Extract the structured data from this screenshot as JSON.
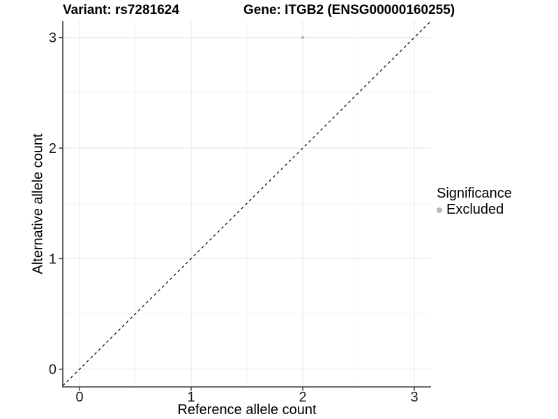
{
  "figure": {
    "title_left": "Variant: rs7281624",
    "title_right": "Gene: ITGB2 (ENSG00000160255)"
  },
  "chart_data": {
    "type": "scatter",
    "title": "Variant: rs7281624 — Gene: ITGB2 (ENSG00000160255)",
    "xlabel": "Reference allele count",
    "ylabel": "Alternative allele count",
    "xlim": [
      -0.15,
      3.15
    ],
    "ylim": [
      -0.16,
      3.15
    ],
    "xticks": [
      0,
      1,
      2,
      3
    ],
    "yticks": [
      0,
      1,
      2,
      3
    ],
    "xticks_minor": [
      0.5,
      1.5,
      2.5
    ],
    "yticks_minor": [
      0.5,
      1.5,
      2.5
    ],
    "grid": "major and minor, light gray on white panel",
    "points": [
      {
        "x": 2,
        "y": 3,
        "series": "Excluded"
      }
    ],
    "identity_line": {
      "style": "dashed",
      "slope": 1,
      "intercept": 0,
      "from": [
        -0.15,
        -0.15
      ],
      "to": [
        3.15,
        3.15
      ]
    },
    "legend": {
      "title": "Significance",
      "position": "right",
      "items": [
        {
          "label": "Excluded",
          "color": "#b9b9b9"
        }
      ]
    },
    "colors": {
      "point": "#b9b9b9",
      "axis": "#3c3c3c",
      "grid_major": "#e8e8e8",
      "grid_minor": "#f4f4f4",
      "identity": "#000000",
      "tick_text": "#1a1a1a",
      "title_text": "#000000"
    }
  }
}
